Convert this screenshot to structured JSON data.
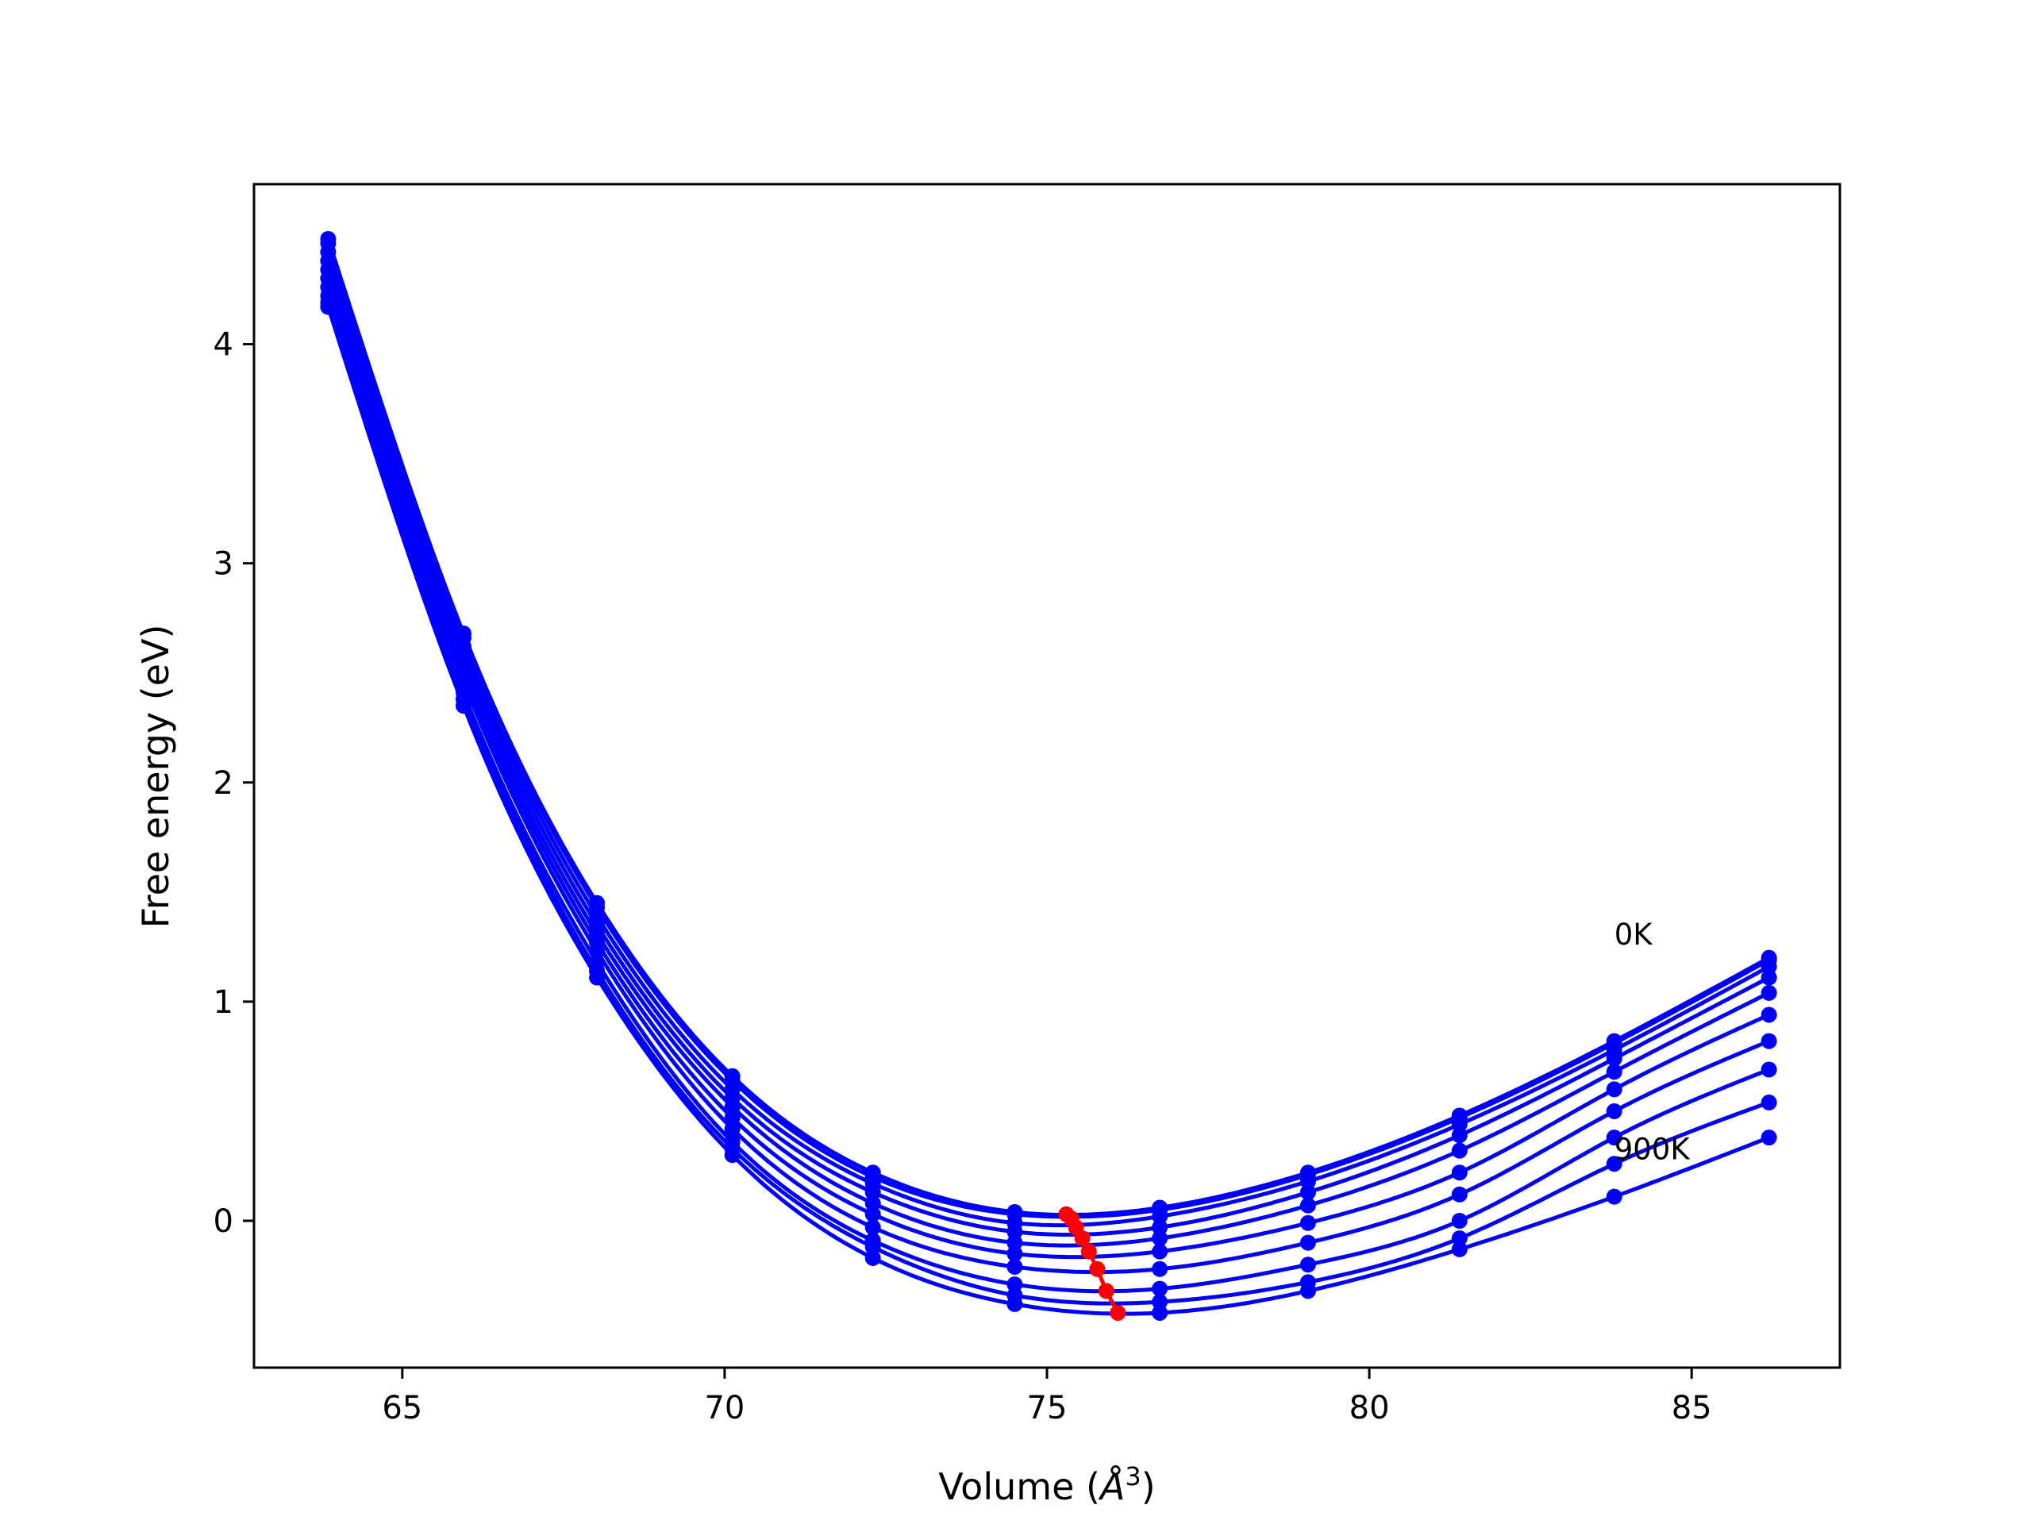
{
  "chart_data": {
    "type": "line",
    "title": "",
    "xlabel_prefix": "Volume (",
    "xlabel_symbol": "Å",
    "xlabel_exp": "3",
    "xlabel_suffix": ")",
    "ylabel": "Free energy (eV)",
    "xlim": [
      62.7,
      87.3
    ],
    "ylim": [
      -0.67,
      4.73
    ],
    "xticks": [
      65,
      70,
      75,
      80,
      85
    ],
    "yticks": [
      0,
      1,
      2,
      3,
      4
    ],
    "grid": false,
    "line_color": "#0000ff",
    "min_color": "#ff0000",
    "x": [
      63.85,
      65.95,
      68.02,
      70.12,
      72.3,
      74.5,
      76.75,
      79.05,
      81.4,
      83.8,
      86.2
    ],
    "series": [
      {
        "name": "0K",
        "values": [
          4.48,
          2.68,
          1.45,
          0.66,
          0.22,
          0.04,
          0.06,
          0.22,
          0.48,
          0.82,
          1.2
        ]
      },
      {
        "name": "",
        "values": [
          4.46,
          2.66,
          1.43,
          0.64,
          0.2,
          0.03,
          0.05,
          0.21,
          0.47,
          0.81,
          1.19
        ]
      },
      {
        "name": "",
        "values": [
          4.42,
          2.62,
          1.39,
          0.6,
          0.17,
          -0.01,
          0.02,
          0.18,
          0.44,
          0.78,
          1.16
        ]
      },
      {
        "name": "",
        "values": [
          4.38,
          2.58,
          1.35,
          0.56,
          0.13,
          -0.05,
          -0.03,
          0.13,
          0.39,
          0.74,
          1.11
        ]
      },
      {
        "name": "",
        "values": [
          4.34,
          2.54,
          1.31,
          0.52,
          0.08,
          -0.1,
          -0.08,
          0.07,
          0.32,
          0.68,
          1.04
        ]
      },
      {
        "name": "",
        "values": [
          4.3,
          2.5,
          1.27,
          0.47,
          0.03,
          -0.15,
          -0.14,
          -0.01,
          0.22,
          0.6,
          0.94
        ]
      },
      {
        "name": "",
        "values": [
          4.26,
          2.46,
          1.23,
          0.42,
          -0.03,
          -0.21,
          -0.22,
          -0.1,
          0.12,
          0.5,
          0.82
        ]
      },
      {
        "name": "",
        "values": [
          4.22,
          2.41,
          1.18,
          0.36,
          -0.09,
          -0.29,
          -0.31,
          -0.2,
          0.0,
          0.38,
          0.69
        ]
      },
      {
        "name": "",
        "values": [
          4.19,
          2.38,
          1.14,
          0.33,
          -0.12,
          -0.34,
          -0.37,
          -0.28,
          -0.08,
          0.26,
          0.54
        ]
      },
      {
        "name": "900K",
        "values": [
          4.17,
          2.35,
          1.11,
          0.3,
          -0.17,
          -0.38,
          -0.42,
          -0.32,
          -0.13,
          0.11,
          0.38
        ]
      }
    ],
    "minima": {
      "x": [
        75.3,
        75.38,
        75.45,
        75.55,
        75.65,
        75.78,
        75.92,
        76.1
      ],
      "y": [
        0.03,
        0.01,
        -0.03,
        -0.08,
        -0.14,
        -0.22,
        -0.32,
        -0.42
      ]
    },
    "annotations": [
      {
        "text": "0K",
        "x": 83.8,
        "y": 1.26
      },
      {
        "text": "900K",
        "x": 83.8,
        "y": 0.28
      }
    ]
  }
}
